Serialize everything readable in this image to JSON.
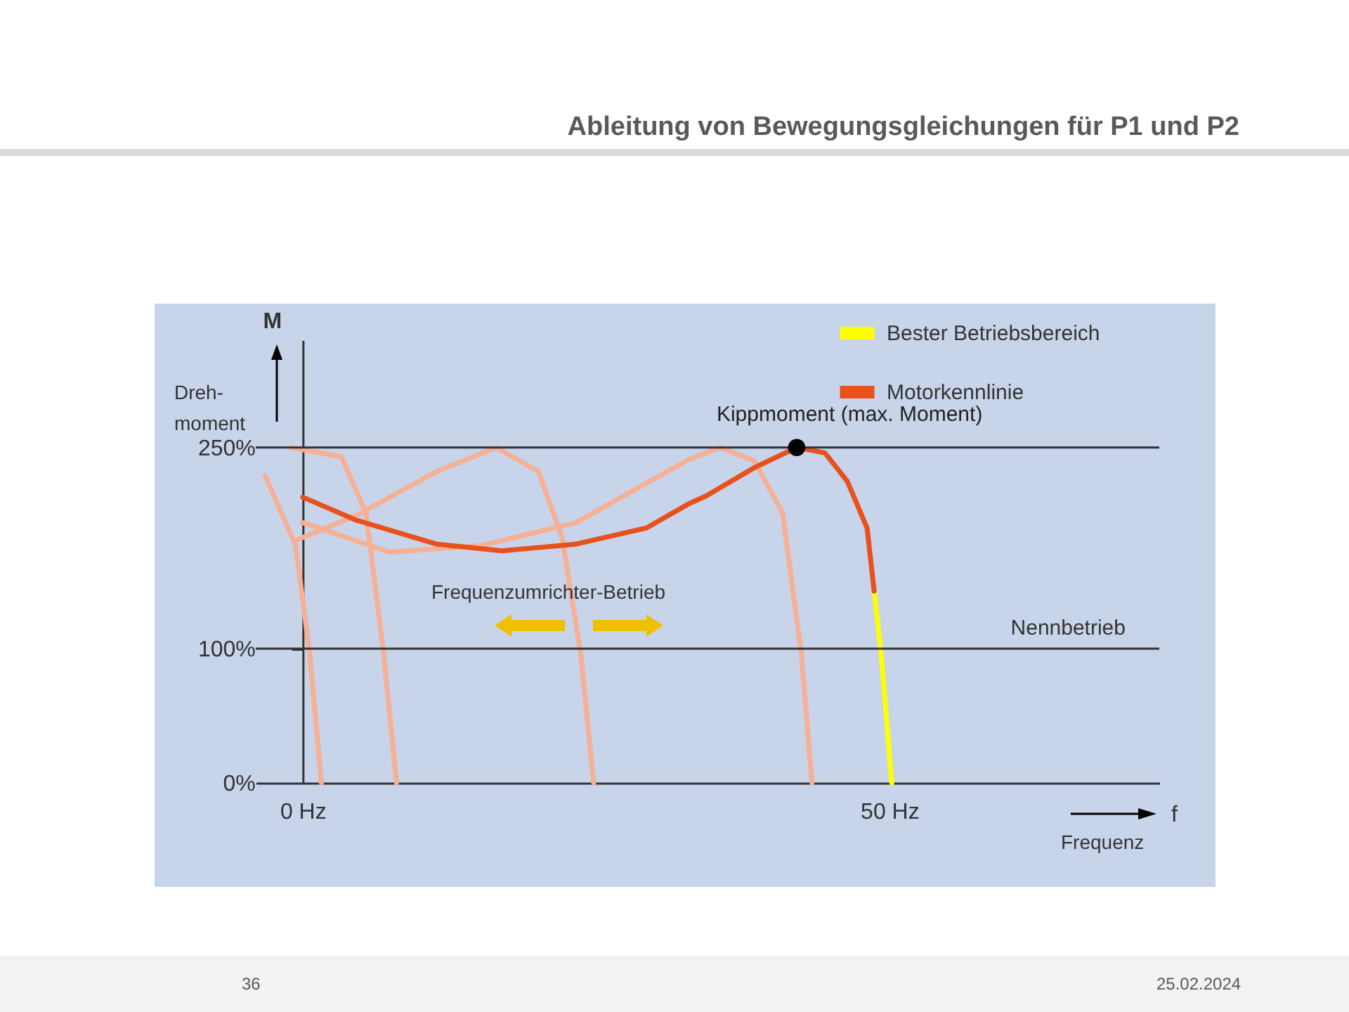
{
  "chart_data": {
    "type": "line",
    "title": "Ableitung von Bewegungsgleichungen für P1 und P2",
    "xlabel": "f",
    "ylabel": "M",
    "xlim": [
      -4,
      73
    ],
    "ylim": [
      0,
      330
    ],
    "xticks": [
      {
        "value": 0,
        "label": "0 Hz"
      },
      {
        "value": 50,
        "label": "50 Hz"
      }
    ],
    "yticks": [
      {
        "value": 0,
        "label": "0%"
      },
      {
        "value": 100,
        "label": "100%"
      },
      {
        "value": 250,
        "label": "250%"
      }
    ],
    "grid": false,
    "legend": "top right",
    "series": [
      {
        "color": "#f5b095",
        "x": [
          -3.2,
          -0.6,
          0.6,
          1.6
        ],
        "values": [
          229,
          177,
          96,
          0
        ]
      },
      {
        "color": "#f5b095",
        "x": [
          -1,
          3.3,
          5.4,
          6.9,
          8
        ],
        "values": [
          250,
          243,
          201,
          96,
          0
        ]
      },
      {
        "color": "#f5b095",
        "x": [
          -0.8,
          4.5,
          11.4,
          16.5,
          20.1,
          22.1,
          23.7,
          24.8
        ],
        "values": [
          180,
          199,
          232,
          250,
          232,
          183,
          96,
          0
        ]
      },
      {
        "color": "#f5b095",
        "x": [
          0,
          7.4,
          15.3,
          23.3,
          32.9,
          35.6,
          38.5,
          40.9,
          42.5,
          43.4
        ],
        "values": [
          194,
          172,
          177,
          194,
          241,
          250,
          240,
          201,
          96,
          0
        ]
      },
      {
        "name": "Bester Betriebsbereich",
        "color": "#ffff00",
        "x": [
          48.7,
          49.3,
          50.2
        ],
        "values": [
          143,
          96,
          0
        ]
      },
      {
        "name": "Motorkennlinie",
        "color": "#e8501c",
        "x": [
          0,
          4.5,
          11.4,
          17,
          23.3,
          29.3,
          32.9,
          34.4,
          38.5,
          42.1,
          44.5,
          46.4,
          48.1,
          48.7
        ],
        "values": [
          213,
          196,
          178,
          173,
          178,
          190,
          208,
          214,
          235,
          250,
          246,
          225,
          190,
          143
        ]
      },
      {
        "type": "scatter",
        "color": "#000000",
        "x": [
          42.1
        ],
        "values": [
          250
        ]
      }
    ],
    "ref_lines": [
      {
        "axis": "y",
        "value": 250,
        "color": "#333333"
      },
      {
        "axis": "y",
        "value": 100,
        "label": "Nennbetrieb",
        "color": "#333333"
      }
    ],
    "annotations": [
      "Dreh-moment",
      {
        "text": "Kippmoment (max. Moment)",
        "x": 42.1,
        "y": 250
      },
      "Frequenzumrichter-Betrieb",
      "Frequenz",
      "36",
      "25.02.2024"
    ]
  }
}
